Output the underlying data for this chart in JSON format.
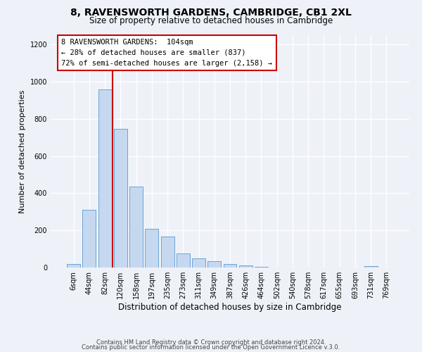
{
  "title": "8, RAVENSWORTH GARDENS, CAMBRIDGE, CB1 2XL",
  "subtitle": "Size of property relative to detached houses in Cambridge",
  "xlabel": "Distribution of detached houses by size in Cambridge",
  "ylabel": "Number of detached properties",
  "bar_labels": [
    "6sqm",
    "44sqm",
    "82sqm",
    "120sqm",
    "158sqm",
    "197sqm",
    "235sqm",
    "273sqm",
    "311sqm",
    "349sqm",
    "387sqm",
    "426sqm",
    "464sqm",
    "502sqm",
    "540sqm",
    "578sqm",
    "617sqm",
    "655sqm",
    "693sqm",
    "731sqm",
    "769sqm"
  ],
  "bar_values": [
    20,
    310,
    960,
    745,
    435,
    210,
    165,
    75,
    48,
    33,
    18,
    10,
    5,
    0,
    0,
    0,
    0,
    0,
    0,
    8,
    0
  ],
  "bar_color": "#c5d8f0",
  "bar_edge_color": "#6aa3d5",
  "property_line_x": 2.5,
  "annotation_line1": "8 RAVENSWORTH GARDENS:  104sqm",
  "annotation_line2": "← 28% of detached houses are smaller (837)",
  "annotation_line3": "72% of semi-detached houses are larger (2,158) →",
  "annotation_box_color": "#ffffff",
  "annotation_box_edge": "#cc0000",
  "line_color": "#cc0000",
  "ylim": [
    0,
    1250
  ],
  "yticks": [
    0,
    200,
    400,
    600,
    800,
    1000,
    1200
  ],
  "footer1": "Contains HM Land Registry data © Crown copyright and database right 2024.",
  "footer2": "Contains public sector information licensed under the Open Government Licence v.3.0.",
  "background_color": "#eef2f8",
  "plot_background": "#eef2f8"
}
